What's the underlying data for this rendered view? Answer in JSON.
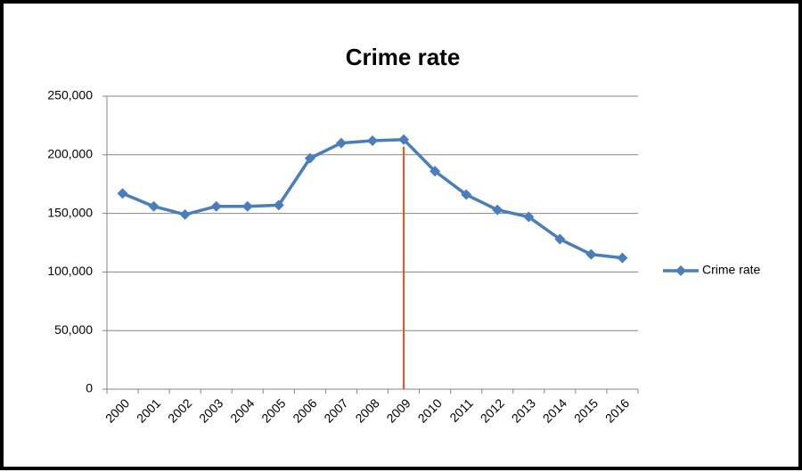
{
  "chart_data": {
    "type": "line",
    "title": "Crime rate",
    "categories": [
      "2000",
      "2001",
      "2002",
      "2003",
      "2004",
      "2005",
      "2006",
      "2007",
      "2008",
      "2009",
      "2010",
      "2011",
      "2012",
      "2013",
      "2014",
      "2015",
      "2016"
    ],
    "series": [
      {
        "name": "Crime rate",
        "color": "#4a7ebb",
        "values": [
          167000,
          156000,
          149000,
          156000,
          156000,
          157000,
          197000,
          210000,
          212000,
          213000,
          186000,
          166000,
          153000,
          147000,
          128000,
          115000,
          112000
        ]
      }
    ],
    "ylim": [
      0,
      250000
    ],
    "yticks": [
      0,
      {
        "value": 50000,
        "label": "50,000"
      },
      {
        "value": 100000,
        "label": "100,000"
      },
      {
        "value": 150000,
        "label": "150,000"
      },
      {
        "value": 200000,
        "label": "200,000"
      },
      {
        "value": 250000,
        "label": "250,000"
      }
    ],
    "grid": true,
    "legend": "right",
    "reference_line": {
      "category": "2009",
      "color": "#e8501e"
    }
  }
}
